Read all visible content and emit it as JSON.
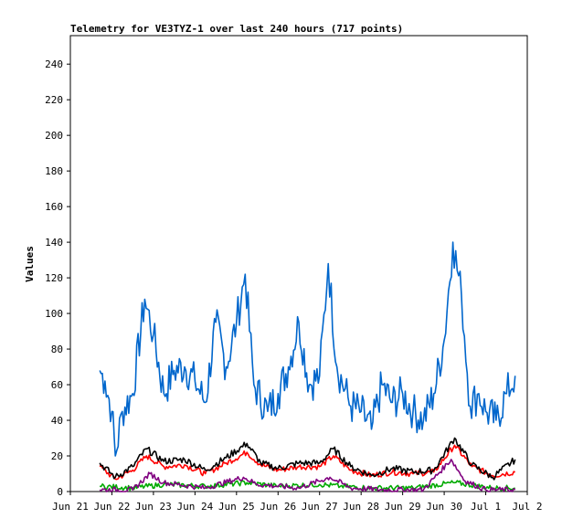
{
  "chart_data": {
    "type": "line",
    "title": "Telemetry for VE3TYZ-1 over last 240 hours (717 points)",
    "xlabel": "",
    "ylabel": "Values",
    "ylim": [
      0,
      256
    ],
    "yticks": [
      0,
      20,
      40,
      60,
      80,
      100,
      120,
      140,
      160,
      180,
      200,
      220,
      240
    ],
    "xlim": [
      "2025-06-21",
      "2025-07-02"
    ],
    "xticks": [
      {
        "date": "2025-06-21",
        "label": "Jun 21"
      },
      {
        "date": "2025-06-22",
        "label": "Jun 22"
      },
      {
        "date": "2025-06-23",
        "label": "Jun 23"
      },
      {
        "date": "2025-06-24",
        "label": "Jun 24"
      },
      {
        "date": "2025-06-25",
        "label": "Jun 25"
      },
      {
        "date": "2025-06-26",
        "label": "Jun 26"
      },
      {
        "date": "2025-06-27",
        "label": "Jun 27"
      },
      {
        "date": "2025-06-28",
        "label": "Jun 28"
      },
      {
        "date": "2025-06-29",
        "label": "Jun 29"
      },
      {
        "date": "2025-06-30",
        "label": "Jun 30"
      },
      {
        "date": "2025-07-01",
        "label": "Jul 1"
      },
      {
        "date": "2025-07-02",
        "label": "Jul 2"
      }
    ],
    "grid": false,
    "legend": "none",
    "series": [
      {
        "color": "#0066cc",
        "points": [
          [
            "2025-06-21T17:00",
            68
          ],
          [
            "2025-06-21T20:00",
            62
          ],
          [
            "2025-06-22T00:00",
            45
          ],
          [
            "2025-06-22T02:00",
            20
          ],
          [
            "2025-06-22T06:00",
            45
          ],
          [
            "2025-06-22T12:00",
            55
          ],
          [
            "2025-06-22T19:00",
            108
          ],
          [
            "2025-06-23T00:00",
            88
          ],
          [
            "2025-06-23T06:00",
            55
          ],
          [
            "2025-06-23T12:00",
            68
          ],
          [
            "2025-06-23T18:00",
            70
          ],
          [
            "2025-06-24T00:00",
            62
          ],
          [
            "2025-06-24T06:00",
            50
          ],
          [
            "2025-06-24T12:00",
            95
          ],
          [
            "2025-06-24T18:00",
            70
          ],
          [
            "2025-06-25T00:00",
            95
          ],
          [
            "2025-06-25T05:00",
            122
          ],
          [
            "2025-06-25T10:00",
            60
          ],
          [
            "2025-06-25T18:00",
            45
          ],
          [
            "2025-06-26T00:00",
            55
          ],
          [
            "2025-06-26T06:00",
            70
          ],
          [
            "2025-06-26T12:00",
            95
          ],
          [
            "2025-06-26T18:00",
            60
          ],
          [
            "2025-06-27T00:00",
            65
          ],
          [
            "2025-06-27T05:00",
            128
          ],
          [
            "2025-06-27T10:00",
            70
          ],
          [
            "2025-06-27T18:00",
            48
          ],
          [
            "2025-06-28T00:00",
            45
          ],
          [
            "2025-06-28T06:00",
            35
          ],
          [
            "2025-06-28T12:00",
            60
          ],
          [
            "2025-06-28T18:00",
            50
          ],
          [
            "2025-06-29T00:00",
            55
          ],
          [
            "2025-06-29T06:00",
            45
          ],
          [
            "2025-06-29T12:00",
            40
          ],
          [
            "2025-06-29T18:00",
            55
          ],
          [
            "2025-06-30T00:00",
            85
          ],
          [
            "2025-06-30T05:00",
            140
          ],
          [
            "2025-06-30T10:00",
            110
          ],
          [
            "2025-06-30T15:00",
            48
          ],
          [
            "2025-06-30T20:00",
            55
          ],
          [
            "2025-07-01T00:00",
            45
          ],
          [
            "2025-07-01T06:00",
            40
          ],
          [
            "2025-07-01T12:00",
            55
          ],
          [
            "2025-07-01T17:00",
            65
          ]
        ]
      },
      {
        "color": "#ff0000",
        "points": [
          [
            "2025-06-21T17:00",
            14
          ],
          [
            "2025-06-22T02:00",
            7
          ],
          [
            "2025-06-22T12:00",
            12
          ],
          [
            "2025-06-22T20:00",
            20
          ],
          [
            "2025-06-23T06:00",
            14
          ],
          [
            "2025-06-23T18:00",
            15
          ],
          [
            "2025-06-24T06:00",
            10
          ],
          [
            "2025-06-24T18:00",
            16
          ],
          [
            "2025-06-25T06:00",
            22
          ],
          [
            "2025-06-25T14:00",
            15
          ],
          [
            "2025-06-26T00:00",
            12
          ],
          [
            "2025-06-26T12:00",
            14
          ],
          [
            "2025-06-27T00:00",
            14
          ],
          [
            "2025-06-27T08:00",
            20
          ],
          [
            "2025-06-27T18:00",
            12
          ],
          [
            "2025-06-28T06:00",
            9
          ],
          [
            "2025-06-28T18:00",
            11
          ],
          [
            "2025-06-29T06:00",
            10
          ],
          [
            "2025-06-29T18:00",
            11
          ],
          [
            "2025-06-30T06:00",
            26
          ],
          [
            "2025-06-30T16:00",
            14
          ],
          [
            "2025-07-01T04:00",
            9
          ],
          [
            "2025-07-01T17:00",
            11
          ]
        ]
      },
      {
        "color": "#000000",
        "points": [
          [
            "2025-06-21T17:00",
            16
          ],
          [
            "2025-06-22T02:00",
            8
          ],
          [
            "2025-06-22T12:00",
            14
          ],
          [
            "2025-06-22T20:00",
            24
          ],
          [
            "2025-06-23T06:00",
            17
          ],
          [
            "2025-06-23T18:00",
            18
          ],
          [
            "2025-06-24T06:00",
            12
          ],
          [
            "2025-06-24T18:00",
            19
          ],
          [
            "2025-06-25T06:00",
            27
          ],
          [
            "2025-06-25T14:00",
            16
          ],
          [
            "2025-06-26T00:00",
            13
          ],
          [
            "2025-06-26T12:00",
            16
          ],
          [
            "2025-06-27T00:00",
            16
          ],
          [
            "2025-06-27T08:00",
            24
          ],
          [
            "2025-06-27T18:00",
            14
          ],
          [
            "2025-06-28T06:00",
            9
          ],
          [
            "2025-06-28T18:00",
            13
          ],
          [
            "2025-06-29T06:00",
            11
          ],
          [
            "2025-06-29T18:00",
            12
          ],
          [
            "2025-06-30T06:00",
            30
          ],
          [
            "2025-06-30T16:00",
            15
          ],
          [
            "2025-07-01T04:00",
            8
          ],
          [
            "2025-07-01T17:00",
            18
          ]
        ]
      },
      {
        "color": "#00aa00",
        "points": [
          [
            "2025-06-21T17:00",
            3
          ],
          [
            "2025-06-22T12:00",
            2
          ],
          [
            "2025-06-23T06:00",
            4
          ],
          [
            "2025-06-24T06:00",
            3
          ],
          [
            "2025-06-25T06:00",
            5
          ],
          [
            "2025-06-26T00:00",
            3
          ],
          [
            "2025-06-27T00:00",
            4
          ],
          [
            "2025-06-27T12:00",
            3
          ],
          [
            "2025-06-28T06:00",
            2
          ],
          [
            "2025-06-29T06:00",
            2
          ],
          [
            "2025-06-30T06:00",
            5
          ],
          [
            "2025-07-01T04:00",
            2
          ],
          [
            "2025-07-01T17:00",
            2
          ]
        ]
      },
      {
        "color": "#800080",
        "points": [
          [
            "2025-06-21T17:00",
            1
          ],
          [
            "2025-06-22T12:00",
            1
          ],
          [
            "2025-06-22T22:00",
            10
          ],
          [
            "2025-06-23T06:00",
            5
          ],
          [
            "2025-06-24T06:00",
            2
          ],
          [
            "2025-06-25T04:00",
            8
          ],
          [
            "2025-06-25T12:00",
            4
          ],
          [
            "2025-06-26T12:00",
            2
          ],
          [
            "2025-06-27T06:00",
            8
          ],
          [
            "2025-06-27T18:00",
            2
          ],
          [
            "2025-06-28T12:00",
            1
          ],
          [
            "2025-06-29T12:00",
            1
          ],
          [
            "2025-06-30T04:00",
            18
          ],
          [
            "2025-06-30T12:00",
            6
          ],
          [
            "2025-07-01T00:00",
            1
          ],
          [
            "2025-07-01T17:00",
            1
          ]
        ]
      }
    ]
  }
}
